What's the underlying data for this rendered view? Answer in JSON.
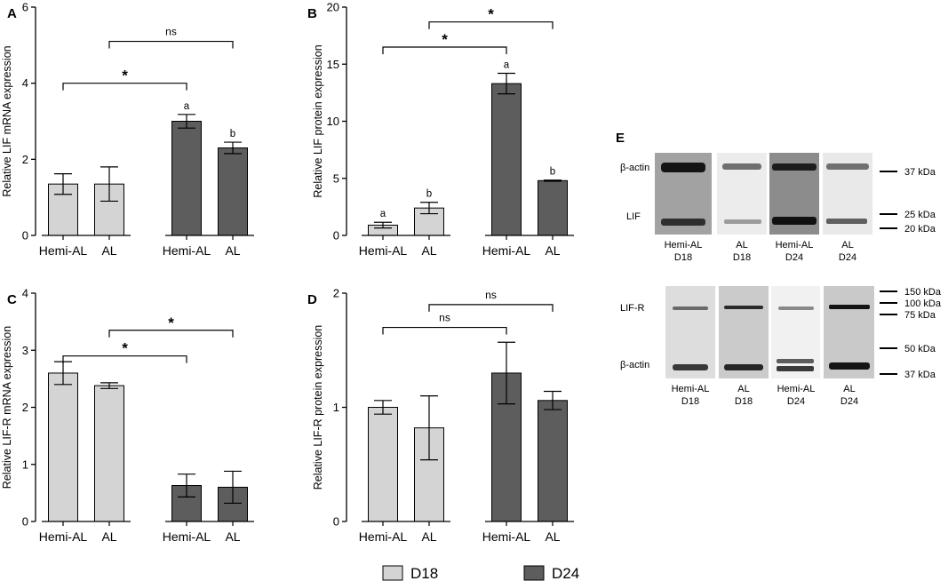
{
  "chart_data": [
    {
      "panel": "A",
      "type": "bar",
      "ylabel": "Relative LIF mRNA expression",
      "ylim": [
        0,
        6
      ],
      "yticks": [
        0,
        2,
        4,
        6
      ],
      "categories": [
        "Hemi-AL",
        "AL",
        "Hemi-AL",
        "AL"
      ],
      "groups": [
        "D18",
        "D18",
        "D24",
        "D24"
      ],
      "values": [
        1.35,
        1.35,
        3.0,
        2.3
      ],
      "errors": [
        0.27,
        0.45,
        0.18,
        0.15
      ],
      "letters": [
        "",
        "",
        "a",
        "b"
      ],
      "brackets": [
        {
          "from": 1,
          "to": 3,
          "level": 5.1,
          "label": "ns"
        },
        {
          "from": 0,
          "to": 2,
          "level": 4.0,
          "label": "*"
        }
      ]
    },
    {
      "panel": "B",
      "type": "bar",
      "ylabel": "Relative LIF protein expression",
      "ylim": [
        0,
        20
      ],
      "yticks": [
        0,
        5,
        10,
        15,
        20
      ],
      "categories": [
        "Hemi-AL",
        "AL",
        "Hemi-AL",
        "AL"
      ],
      "groups": [
        "D18",
        "D18",
        "D24",
        "D24"
      ],
      "values": [
        0.9,
        2.4,
        13.3,
        4.8
      ],
      "errors": [
        0.25,
        0.5,
        0.9,
        0.05
      ],
      "letters": [
        "a",
        "b",
        "a",
        "b"
      ],
      "brackets": [
        {
          "from": 1,
          "to": 3,
          "level": 18.7,
          "label": "*"
        },
        {
          "from": 0,
          "to": 2,
          "level": 16.5,
          "label": "*"
        }
      ]
    },
    {
      "panel": "C",
      "type": "bar",
      "ylabel": "Relative LIF-R mRNA expression",
      "ylim": [
        0,
        4
      ],
      "yticks": [
        0,
        1,
        2,
        3,
        4
      ],
      "categories": [
        "Hemi-AL",
        "AL",
        "Hemi-AL",
        "AL"
      ],
      "groups": [
        "D18",
        "D18",
        "D24",
        "D24"
      ],
      "values": [
        2.6,
        2.38,
        0.63,
        0.6
      ],
      "errors": [
        0.2,
        0.05,
        0.2,
        0.28
      ],
      "letters": [
        "",
        "",
        "",
        ""
      ],
      "brackets": [
        {
          "from": 1,
          "to": 3,
          "level": 3.35,
          "label": "*"
        },
        {
          "from": 0,
          "to": 2,
          "level": 2.9,
          "label": "*"
        }
      ]
    },
    {
      "panel": "D",
      "type": "bar",
      "ylabel": "Relative LIF-R protein expression",
      "ylim": [
        0,
        2
      ],
      "yticks": [
        0,
        1,
        2
      ],
      "categories": [
        "Hemi-AL",
        "AL",
        "Hemi-AL",
        "AL"
      ],
      "groups": [
        "D18",
        "D18",
        "D24",
        "D24"
      ],
      "values": [
        1.0,
        0.82,
        1.3,
        1.06
      ],
      "errors": [
        0.06,
        0.28,
        0.27,
        0.08
      ],
      "letters": [
        "",
        "",
        "",
        ""
      ],
      "brackets": [
        {
          "from": 1,
          "to": 3,
          "level": 1.9,
          "label": "ns"
        },
        {
          "from": 0,
          "to": 2,
          "level": 1.7,
          "label": "ns"
        }
      ]
    }
  ],
  "legend": [
    {
      "label": "D18",
      "color": "#d4d4d4"
    },
    {
      "label": "D24",
      "color": "#5d5d5d"
    }
  ],
  "colors": {
    "D18": "#d4d4d4",
    "D24": "#5d5d5d",
    "axis": "#000000"
  },
  "blots": {
    "panel": "E",
    "top": {
      "row_labels": [
        "β-actin",
        "LIF"
      ],
      "markers": [
        "37 kDa",
        "25 kDa",
        "20 kDa"
      ],
      "lanes": [
        {
          "line1": "Hemi-AL",
          "line2": "D18"
        },
        {
          "line1": "AL",
          "line2": "D18"
        },
        {
          "line1": "Hemi-AL",
          "line2": "D24"
        },
        {
          "line1": "AL",
          "line2": "D24"
        }
      ]
    },
    "bottom": {
      "row_labels": [
        "LIF-R",
        "β-actin"
      ],
      "markers": [
        "150 kDa",
        "100 kDa",
        "75 kDa",
        "50 kDa",
        "37 kDa"
      ],
      "lanes": [
        {
          "line1": "Hemi-AL",
          "line2": "D18"
        },
        {
          "line1": "AL",
          "line2": "D18"
        },
        {
          "line1": "Hemi-AL",
          "line2": "D24"
        },
        {
          "line1": "AL",
          "line2": "D24"
        }
      ]
    }
  }
}
